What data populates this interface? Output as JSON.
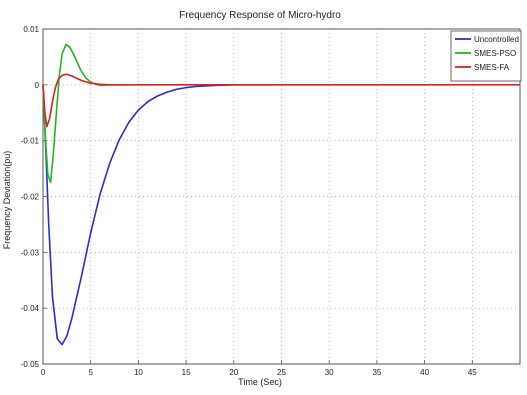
{
  "chart_data": {
    "type": "line",
    "title": "Frequency Response of Micro-hydro",
    "xlabel": "Time (Sec)",
    "ylabel": "Frequency Deviation(pu)",
    "xlim": [
      0,
      50
    ],
    "ylim": [
      -0.05,
      0.01
    ],
    "xticks": [
      "0",
      "5",
      "10",
      "15",
      "20",
      "25",
      "30",
      "35",
      "40",
      "45"
    ],
    "xtick_values": [
      0,
      5,
      10,
      15,
      20,
      25,
      30,
      35,
      40,
      45
    ],
    "yticks": [
      "0.01",
      "0",
      "-0.01",
      "-0.02",
      "-0.03",
      "-0.04",
      "-0.05"
    ],
    "ytick_values": [
      0.01,
      0,
      -0.01,
      -0.02,
      -0.03,
      -0.04,
      -0.05
    ],
    "grid": true,
    "legend_position": "top-right",
    "series": [
      {
        "name": "Uncontrolled",
        "color": "#2b2bd6",
        "x": [
          0,
          0.3,
          0.6,
          1.0,
          1.5,
          2.0,
          2.5,
          3.0,
          4.0,
          5.0,
          6.0,
          7.0,
          8.0,
          9.0,
          10.0,
          11.0,
          12.0,
          13.0,
          14.0,
          15.0,
          16.0,
          17.0,
          18.0,
          20.0,
          22.0,
          24.0
        ],
        "y": [
          0,
          -0.012,
          -0.025,
          -0.038,
          -0.0455,
          -0.0465,
          -0.045,
          -0.042,
          -0.0345,
          -0.0265,
          -0.0195,
          -0.014,
          -0.0098,
          -0.0067,
          -0.0045,
          -0.003,
          -0.002,
          -0.0013,
          -0.0008,
          -0.0005,
          -0.0003,
          -0.0002,
          -0.0001,
          0,
          0,
          0
        ]
      },
      {
        "name": "SMES-PSO",
        "color": "#22b822",
        "x": [
          0,
          0.2,
          0.5,
          0.8,
          1.1,
          1.4,
          1.7,
          2.0,
          2.4,
          2.8,
          3.2,
          3.6,
          4.0,
          4.5,
          5.0,
          5.5,
          6.0,
          7.0,
          8.0,
          9.0
        ],
        "y": [
          0,
          -0.008,
          -0.016,
          -0.0175,
          -0.012,
          -0.005,
          0.0015,
          0.0055,
          0.0072,
          0.0068,
          0.0055,
          0.004,
          0.0025,
          0.0012,
          0.0005,
          0.0001,
          -0.0001,
          0,
          0,
          0
        ]
      },
      {
        "name": "SMES-FA",
        "color": "#e02020",
        "x": [
          0,
          0.2,
          0.4,
          0.7,
          1.0,
          1.3,
          1.6,
          2.0,
          2.5,
          3.0,
          3.5,
          4.0,
          5.0,
          6.0,
          7.0,
          8.0,
          50
        ],
        "y": [
          0,
          -0.005,
          -0.0075,
          -0.006,
          -0.003,
          -0.0005,
          0.001,
          0.0017,
          0.0019,
          0.0016,
          0.0012,
          0.0008,
          0.0003,
          0.0001,
          0,
          0,
          0
        ]
      }
    ]
  }
}
